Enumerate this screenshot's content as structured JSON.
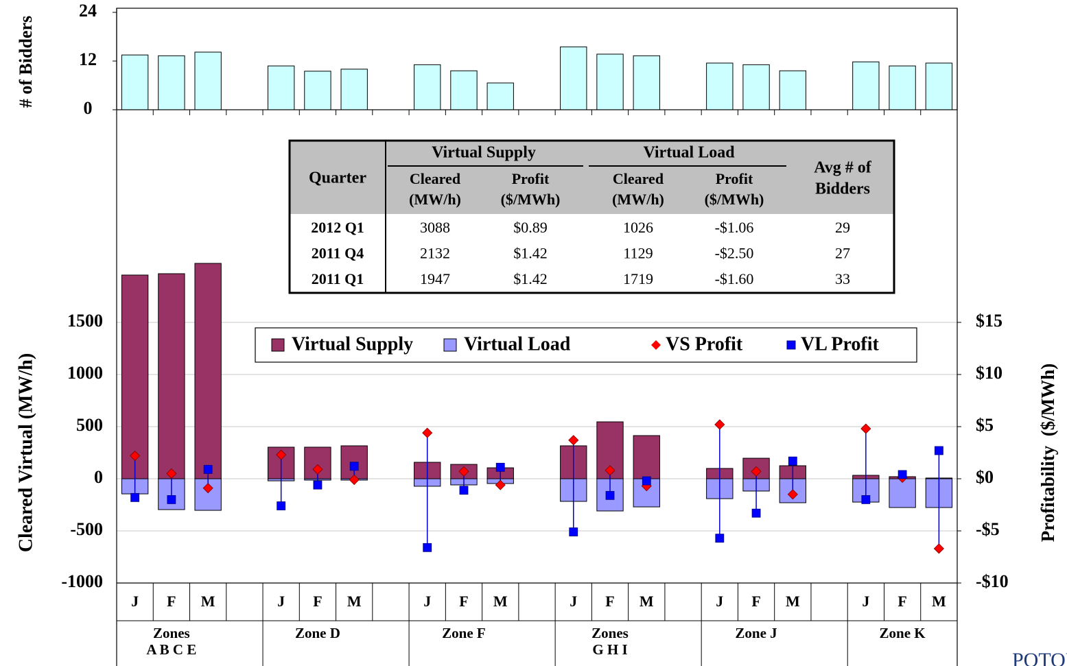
{
  "chart_data": [
    {
      "type": "bar",
      "ylabel": "# of Bidders",
      "color": "#ccffff",
      "values": [
        13.5,
        13.3,
        14.2,
        null,
        10.8,
        9.5,
        10.0,
        null,
        11.1,
        9.6,
        6.6,
        null,
        15.5,
        13.7,
        13.3,
        null,
        11.5,
        11.1,
        9.6,
        null,
        11.8,
        10.8,
        11.5
      ],
      "ylim": [
        0,
        24
      ],
      "yticks": [
        0,
        12,
        24
      ]
    },
    {
      "type": "combo",
      "ylabel": "Cleared Virtual (MW/h)",
      "y2label": "Profitability  ($/MWh)",
      "categories": [
        "J",
        "F",
        "M",
        null,
        "J",
        "F",
        "M",
        null,
        "J",
        "F",
        "M",
        null,
        "J",
        "F",
        "M",
        null,
        "J",
        "F",
        "M",
        null,
        "J",
        "F",
        "M"
      ],
      "groups": [
        [
          "Zones",
          "A B C E"
        ],
        [
          "Zone D"
        ],
        [
          "Zone F"
        ],
        [
          "Zones",
          "G H I"
        ],
        [
          "Zone J"
        ],
        [
          "Zone K"
        ]
      ],
      "series": [
        {
          "name": "Virtual Supply",
          "kind": "bar",
          "color": "#993366",
          "values": [
            1954,
            1967,
            2066,
            null,
            303,
            303,
            316,
            null,
            158,
            138,
            105,
            null,
            316,
            546,
            414,
            null,
            99,
            197,
            125,
            null,
            33,
            20,
            7
          ]
        },
        {
          "name": "Virtual Load",
          "kind": "bar",
          "color": "#9999ff",
          "values": [
            -145,
            -296,
            -303,
            null,
            -20,
            -13,
            -13,
            null,
            -72,
            -59,
            -46,
            null,
            -217,
            -309,
            -270,
            null,
            -191,
            -118,
            -230,
            null,
            -224,
            -276,
            -276
          ]
        },
        {
          "name": "VS Profit",
          "kind": "diamond",
          "color": "#ff0000",
          "axis": "y2",
          "values": [
            2.2,
            0.5,
            -0.9,
            null,
            2.3,
            0.9,
            -0.1,
            null,
            4.4,
            0.7,
            -0.6,
            null,
            3.7,
            0.8,
            -0.7,
            null,
            5.2,
            0.7,
            -1.5,
            null,
            4.8,
            0.1,
            -6.7
          ]
        },
        {
          "name": "VL Profit",
          "kind": "square",
          "color": "#0000ff",
          "axis": "y2",
          "values": [
            -1.8,
            -2.0,
            0.9,
            null,
            -2.6,
            -0.6,
            1.2,
            null,
            -6.6,
            -1.1,
            1.1,
            null,
            -5.1,
            -1.6,
            -0.2,
            null,
            -5.7,
            -3.3,
            1.7,
            null,
            -2.0,
            0.4,
            2.7
          ]
        }
      ],
      "connector_color": "#0000cc",
      "ylim": [
        -1000,
        3500
      ],
      "yticks": [
        -1000,
        -500,
        0,
        500,
        1000,
        1500
      ],
      "y2lim": [
        -10,
        35
      ],
      "y2ticks": [
        {
          "value": -10,
          "label": "-$10"
        },
        {
          "value": -5,
          "label": "-$5"
        },
        {
          "value": 0,
          "label": "$0"
        },
        {
          "value": 5,
          "label": "$5"
        },
        {
          "value": 10,
          "label": "$10"
        },
        {
          "value": 15,
          "label": "$15"
        }
      ],
      "grid": true
    }
  ],
  "table": {
    "quarter_header": "Quarter",
    "groups": [
      {
        "label": "Virtual Supply",
        "columns": [
          [
            "Cleared",
            "(MW/h)"
          ],
          [
            "Profit",
            "($/MWh)"
          ]
        ]
      },
      {
        "label": "Virtual Load",
        "columns": [
          [
            "Cleared",
            "(MW/h)"
          ],
          [
            "Profit",
            "($/MWh)"
          ]
        ]
      }
    ],
    "last_header": [
      "Avg # of",
      "Bidders"
    ],
    "rows": [
      [
        "2012 Q1",
        "3088",
        "$0.89",
        "1026",
        "-$1.06",
        "29"
      ],
      [
        "2011 Q4",
        "2132",
        "$1.42",
        "1129",
        "-$2.50",
        "27"
      ],
      [
        "2011 Q1",
        "1947",
        "$1.42",
        "1719",
        "-$1.60",
        "33"
      ]
    ]
  },
  "logo_text": "POTOMAC"
}
